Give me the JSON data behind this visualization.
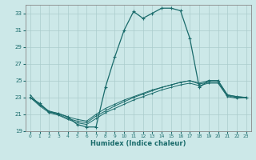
{
  "xlabel": "Humidex (Indice chaleur)",
  "bg_color": "#cce8e8",
  "grid_color": "#aacccc",
  "line_color": "#1a6b6b",
  "xlim": [
    -0.5,
    23.5
  ],
  "ylim": [
    19,
    34
  ],
  "yticks": [
    19,
    21,
    23,
    25,
    27,
    29,
    31,
    33
  ],
  "xticks": [
    0,
    1,
    2,
    3,
    4,
    5,
    6,
    7,
    8,
    9,
    10,
    11,
    12,
    13,
    14,
    15,
    16,
    17,
    18,
    19,
    20,
    21,
    22,
    23
  ],
  "line1_x": [
    0,
    1,
    2,
    3,
    4,
    5,
    6,
    7,
    8,
    9,
    10,
    11,
    12,
    13,
    14,
    15,
    16,
    17,
    18,
    19,
    20,
    21,
    22,
    23
  ],
  "line1_y": [
    23.0,
    22.3,
    21.3,
    21.1,
    20.7,
    19.8,
    19.5,
    19.5,
    24.2,
    27.8,
    31.0,
    33.2,
    32.4,
    33.0,
    33.6,
    33.6,
    33.3,
    30.0,
    24.2,
    25.0,
    25.0,
    23.3,
    23.1,
    23.0
  ],
  "line2_x": [
    0,
    1,
    2,
    3,
    4,
    5,
    6,
    7,
    8,
    9,
    10,
    11,
    12,
    13,
    14,
    15,
    16,
    17,
    18,
    19,
    20,
    21,
    22,
    23
  ],
  "line2_y": [
    23.0,
    22.2,
    21.3,
    21.0,
    20.5,
    20.2,
    20.0,
    20.8,
    21.4,
    22.0,
    22.5,
    23.0,
    23.4,
    23.8,
    24.2,
    24.5,
    24.8,
    25.0,
    24.7,
    25.0,
    25.0,
    23.3,
    23.1,
    23.0
  ],
  "line3_x": [
    0,
    1,
    2,
    3,
    4,
    5,
    6,
    7,
    8,
    9,
    10,
    11,
    12,
    13,
    14,
    15,
    16,
    17,
    18,
    19,
    20,
    21,
    22,
    23
  ],
  "line3_y": [
    23.0,
    22.0,
    21.2,
    20.9,
    20.4,
    20.0,
    19.8,
    20.5,
    21.2,
    21.7,
    22.2,
    22.7,
    23.1,
    23.5,
    23.9,
    24.2,
    24.5,
    24.7,
    24.4,
    24.7,
    24.7,
    23.1,
    22.9,
    23.0
  ],
  "line4_x": [
    0,
    1,
    2,
    3,
    4,
    5,
    6,
    7,
    8,
    9,
    10,
    11,
    12,
    13,
    14,
    15,
    16,
    17,
    18,
    19,
    20,
    21,
    22,
    23
  ],
  "line4_y": [
    23.3,
    22.1,
    21.4,
    21.1,
    20.7,
    20.4,
    20.2,
    21.0,
    21.7,
    22.2,
    22.7,
    23.1,
    23.5,
    23.9,
    24.2,
    24.5,
    24.8,
    25.0,
    24.6,
    24.8,
    24.8,
    23.2,
    23.0,
    23.0
  ]
}
